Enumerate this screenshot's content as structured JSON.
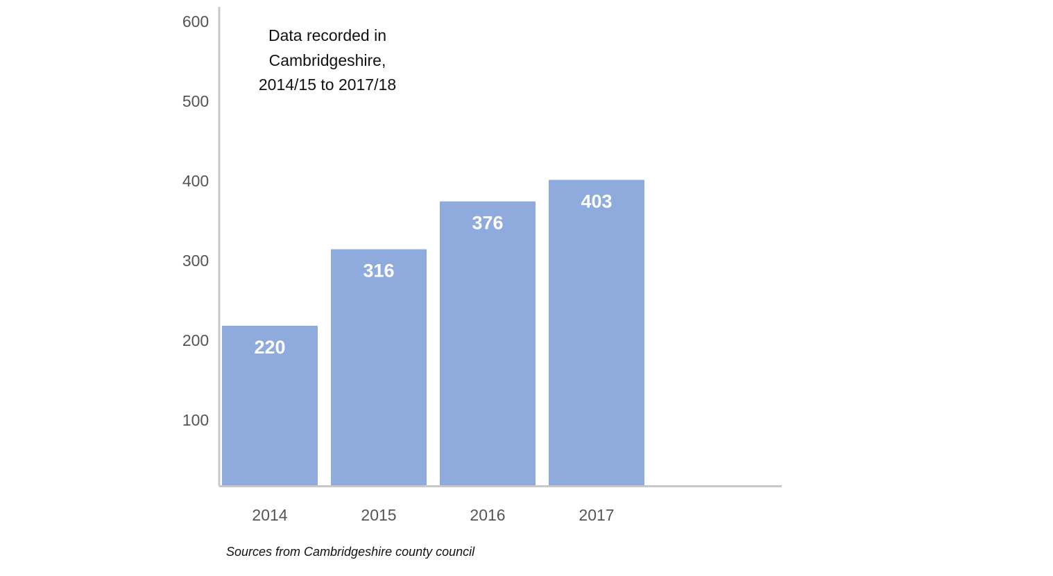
{
  "chart_data": {
    "type": "bar",
    "annotation": [
      "Data recorded in",
      "Cambridgeshire,",
      "2014/15 to 2017/18"
    ],
    "source": "Sources from Cambridgeshire county council",
    "categories": [
      "2014",
      "2015",
      "2016",
      "2017"
    ],
    "values": [
      220,
      316,
      376,
      403
    ],
    "color": "#8faadc",
    "ylim": [
      20,
      620
    ],
    "yticks": [
      100,
      200,
      300,
      400,
      500,
      600
    ],
    "grid": false
  }
}
